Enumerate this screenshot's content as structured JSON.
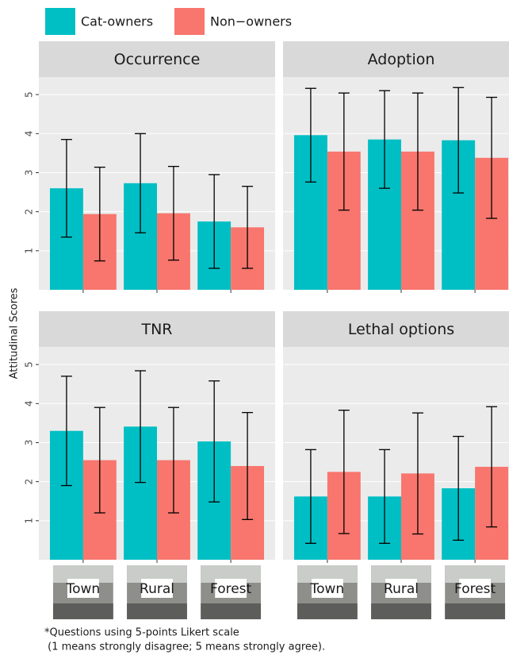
{
  "y_label": "Attitudinal Scores",
  "footnote": [
    "*Questions using 5-points Likert scale",
    " (1 means strongly disagree; 5 means strongly agree)."
  ],
  "chart_data": [
    {
      "type": "bar",
      "title": "Occurrence",
      "ylim": [
        0,
        5.45
      ],
      "yticks": [
        1,
        2,
        3,
        4,
        5
      ],
      "series": [
        {
          "name": "Cat-owners",
          "color": "#00bfc4",
          "values": [
            2.6,
            2.73,
            1.75
          ],
          "errors": [
            1.25,
            1.27,
            1.2
          ]
        },
        {
          "name": "Non−owners",
          "color": "#f8766d",
          "values": [
            1.94,
            1.96,
            1.6
          ],
          "errors": [
            1.2,
            1.2,
            1.05
          ]
        }
      ]
    },
    {
      "type": "bar",
      "title": "Adoption",
      "ylim": [
        0,
        5.45
      ],
      "yticks": [
        1,
        2,
        3,
        4,
        5
      ],
      "series": [
        {
          "name": "Cat-owners",
          "color": "#00bfc4",
          "values": [
            3.96,
            3.85,
            3.83
          ],
          "errors": [
            1.2,
            1.25,
            1.35
          ]
        },
        {
          "name": "Non−owners",
          "color": "#f8766d",
          "values": [
            3.54,
            3.54,
            3.38
          ],
          "errors": [
            1.5,
            1.5,
            1.55
          ]
        }
      ]
    },
    {
      "type": "bar",
      "title": "TNR",
      "ylim": [
        0,
        5.45
      ],
      "yticks": [
        1,
        2,
        3,
        4,
        5
      ],
      "categories": [
        "Town",
        "Rural",
        "Forest"
      ],
      "series": [
        {
          "name": "Cat-owners",
          "color": "#00bfc4",
          "values": [
            3.3,
            3.41,
            3.03
          ],
          "errors": [
            1.4,
            1.43,
            1.55
          ]
        },
        {
          "name": "Non−owners",
          "color": "#f8766d",
          "values": [
            2.55,
            2.55,
            2.4
          ],
          "errors": [
            1.35,
            1.35,
            1.37
          ]
        }
      ]
    },
    {
      "type": "bar",
      "title": "Lethal options",
      "ylim": [
        0,
        5.45
      ],
      "yticks": [
        1,
        2,
        3,
        4,
        5
      ],
      "categories": [
        "Town",
        "Rural",
        "Forest"
      ],
      "series": [
        {
          "name": "Cat-owners",
          "color": "#00bfc4",
          "values": [
            1.62,
            1.62,
            1.83
          ],
          "errors": [
            1.2,
            1.2,
            1.33
          ]
        },
        {
          "name": "Non−owners",
          "color": "#f8766d",
          "values": [
            2.25,
            2.21,
            2.38
          ],
          "errors": [
            1.58,
            1.55,
            1.54
          ]
        }
      ]
    }
  ]
}
